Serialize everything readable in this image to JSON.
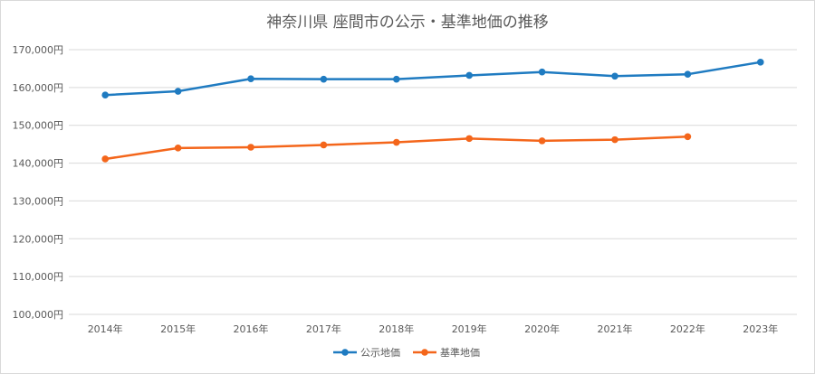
{
  "chart_data": {
    "type": "line",
    "title": "神奈川県 座間市の公示・基準地価の推移",
    "categories": [
      "2014年",
      "2015年",
      "2016年",
      "2017年",
      "2018年",
      "2019年",
      "2020年",
      "2021年",
      "2022年",
      "2023年"
    ],
    "series": [
      {
        "name": "公示地価",
        "color": "#1f7bc1",
        "values": [
          158000,
          159000,
          162300,
          162200,
          162200,
          163200,
          164100,
          163000,
          163500,
          166700
        ]
      },
      {
        "name": "基準地価",
        "color": "#f4661b",
        "values": [
          141100,
          144000,
          144200,
          144800,
          145500,
          146500,
          145900,
          146200,
          147000,
          null
        ]
      }
    ],
    "ylim": [
      100000,
      170000
    ],
    "yticks": [
      "100,000円",
      "110,000円",
      "120,000円",
      "130,000円",
      "140,000円",
      "150,000円",
      "160,000円",
      "170,000円"
    ],
    "grid": true,
    "legend": "bottom"
  }
}
